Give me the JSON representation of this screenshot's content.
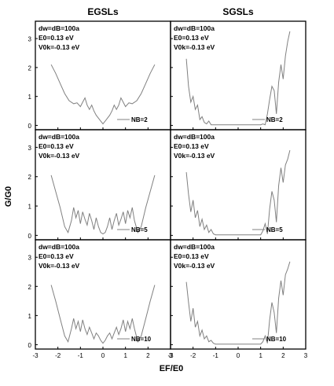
{
  "figure": {
    "column_titles": [
      "EGSLs",
      "SGSLs"
    ],
    "ylabel": "G/G0",
    "xlabel": "EF/E0",
    "annotation_lines": [
      "dw=dB=100a",
      "E0=0.13 eV",
      "V0k=-0.13 eV"
    ],
    "line_color": "#808080"
  },
  "chart_data": [
    {
      "type": "line",
      "panel": "EGSLs",
      "legend": "NB=2",
      "xlim": [
        -3,
        3
      ],
      "ylim": [
        -0.15,
        3.6
      ],
      "grid": false,
      "x": [
        -2.3,
        -2.1,
        -1.9,
        -1.7,
        -1.5,
        -1.3,
        -1.15,
        -1.0,
        -0.9,
        -0.8,
        -0.7,
        -0.6,
        -0.5,
        -0.4,
        -0.3,
        -0.2,
        -0.1,
        0.0,
        0.1,
        0.2,
        0.3,
        0.4,
        0.5,
        0.6,
        0.7,
        0.8,
        0.9,
        1.0,
        1.15,
        1.3,
        1.5,
        1.7,
        1.9,
        2.1,
        2.3
      ],
      "y": [
        2.1,
        1.8,
        1.45,
        1.1,
        0.85,
        0.75,
        0.78,
        0.65,
        0.8,
        0.95,
        0.7,
        0.55,
        0.7,
        0.5,
        0.35,
        0.25,
        0.15,
        0.05,
        0.15,
        0.25,
        0.35,
        0.5,
        0.7,
        0.55,
        0.7,
        0.95,
        0.8,
        0.65,
        0.78,
        0.75,
        0.85,
        1.1,
        1.45,
        1.8,
        2.1
      ]
    },
    {
      "type": "line",
      "panel": "SGSLs",
      "legend": "NB=2",
      "xlim": [
        -3,
        3
      ],
      "ylim": [
        -0.15,
        3.6
      ],
      "grid": false,
      "x": [
        -2.3,
        -2.2,
        -2.1,
        -2.0,
        -1.9,
        -1.8,
        -1.7,
        -1.6,
        -1.5,
        -1.4,
        -1.3,
        -1.2,
        -1.1,
        -1.0,
        -0.5,
        0.0,
        0.5,
        1.0,
        1.1,
        1.2,
        1.3,
        1.4,
        1.5,
        1.6,
        1.7,
        1.8,
        1.9,
        2.0,
        2.1,
        2.2,
        2.3
      ],
      "y": [
        2.3,
        1.35,
        0.8,
        1.0,
        0.55,
        0.7,
        0.2,
        0.3,
        0.1,
        0.05,
        0.15,
        0.02,
        0.02,
        0.02,
        0.02,
        0.02,
        0.02,
        0.02,
        0.05,
        0.02,
        0.4,
        0.9,
        1.35,
        1.2,
        0.4,
        1.5,
        2.1,
        1.6,
        2.4,
        2.9,
        3.25
      ]
    },
    {
      "type": "line",
      "panel": "EGSLs",
      "legend": "NB=5",
      "xlim": [
        -3,
        3
      ],
      "ylim": [
        -0.15,
        3.6
      ],
      "grid": false,
      "x": [
        -2.3,
        -2.1,
        -1.9,
        -1.7,
        -1.55,
        -1.4,
        -1.3,
        -1.2,
        -1.1,
        -1.0,
        -0.9,
        -0.8,
        -0.7,
        -0.6,
        -0.5,
        -0.4,
        -0.3,
        -0.2,
        -0.1,
        0.0,
        0.1,
        0.2,
        0.3,
        0.4,
        0.5,
        0.6,
        0.7,
        0.8,
        0.9,
        1.0,
        1.1,
        1.2,
        1.3,
        1.4,
        1.55,
        1.7,
        1.9,
        2.1,
        2.3
      ],
      "y": [
        2.05,
        1.5,
        0.95,
        0.3,
        0.1,
        0.5,
        0.95,
        0.6,
        0.85,
        0.4,
        0.8,
        0.55,
        0.35,
        0.75,
        0.5,
        0.2,
        0.6,
        0.3,
        0.1,
        0.05,
        0.1,
        0.3,
        0.6,
        0.2,
        0.5,
        0.75,
        0.35,
        0.55,
        0.8,
        0.4,
        0.85,
        0.6,
        0.95,
        0.5,
        0.1,
        0.3,
        0.95,
        1.5,
        2.05
      ]
    },
    {
      "type": "line",
      "panel": "SGSLs",
      "legend": "NB=5",
      "xlim": [
        -3,
        3
      ],
      "ylim": [
        -0.15,
        3.6
      ],
      "grid": false,
      "x": [
        -2.3,
        -2.2,
        -2.1,
        -2.0,
        -1.9,
        -1.8,
        -1.7,
        -1.6,
        -1.5,
        -1.4,
        -1.3,
        -1.2,
        -1.1,
        -1.0,
        -0.5,
        0.0,
        0.5,
        1.0,
        1.1,
        1.2,
        1.3,
        1.4,
        1.5,
        1.6,
        1.7,
        1.8,
        1.9,
        2.0,
        2.1,
        2.2,
        2.3
      ],
      "y": [
        2.15,
        1.4,
        0.8,
        1.2,
        0.6,
        0.85,
        0.3,
        0.55,
        0.2,
        0.35,
        0.1,
        0.2,
        0.05,
        0.02,
        0.02,
        0.02,
        0.02,
        0.02,
        0.15,
        0.4,
        0.05,
        0.9,
        1.5,
        1.2,
        0.45,
        1.7,
        2.3,
        1.8,
        2.4,
        2.6,
        2.9
      ]
    },
    {
      "type": "line",
      "panel": "EGSLs",
      "legend": "NB=10",
      "xlim": [
        -3,
        3
      ],
      "ylim": [
        -0.15,
        3.6
      ],
      "grid": false,
      "x": [
        -2.3,
        -2.1,
        -1.9,
        -1.7,
        -1.55,
        -1.4,
        -1.3,
        -1.2,
        -1.1,
        -1.0,
        -0.9,
        -0.8,
        -0.7,
        -0.6,
        -0.5,
        -0.4,
        -0.3,
        -0.2,
        -0.1,
        0.0,
        0.1,
        0.2,
        0.3,
        0.4,
        0.5,
        0.6,
        0.7,
        0.8,
        0.9,
        1.0,
        1.1,
        1.2,
        1.3,
        1.4,
        1.55,
        1.7,
        1.9,
        2.1,
        2.3
      ],
      "y": [
        2.05,
        1.5,
        0.9,
        0.3,
        0.1,
        0.55,
        0.9,
        0.55,
        0.8,
        0.45,
        0.85,
        0.55,
        0.35,
        0.6,
        0.4,
        0.2,
        0.4,
        0.3,
        0.15,
        0.05,
        0.15,
        0.3,
        0.4,
        0.2,
        0.4,
        0.6,
        0.35,
        0.55,
        0.85,
        0.45,
        0.8,
        0.55,
        0.9,
        0.55,
        0.1,
        0.3,
        0.9,
        1.5,
        2.05
      ]
    },
    {
      "type": "line",
      "panel": "SGSLs",
      "legend": "NB=10",
      "xlim": [
        -3,
        3
      ],
      "ylim": [
        -0.15,
        3.6
      ],
      "grid": false,
      "x": [
        -2.3,
        -2.2,
        -2.1,
        -2.0,
        -1.9,
        -1.8,
        -1.7,
        -1.6,
        -1.5,
        -1.4,
        -1.3,
        -1.2,
        -1.1,
        -1.0,
        -0.5,
        0.0,
        0.5,
        1.0,
        1.1,
        1.2,
        1.3,
        1.4,
        1.5,
        1.6,
        1.7,
        1.8,
        1.9,
        2.0,
        2.1,
        2.2,
        2.3
      ],
      "y": [
        2.15,
        1.45,
        0.8,
        1.25,
        0.6,
        0.8,
        0.3,
        0.5,
        0.2,
        0.3,
        0.1,
        0.15,
        0.05,
        0.02,
        0.02,
        0.02,
        0.02,
        0.02,
        0.1,
        0.3,
        0.05,
        0.85,
        1.45,
        1.1,
        0.4,
        1.6,
        2.2,
        1.7,
        2.4,
        2.6,
        2.85
      ]
    }
  ]
}
